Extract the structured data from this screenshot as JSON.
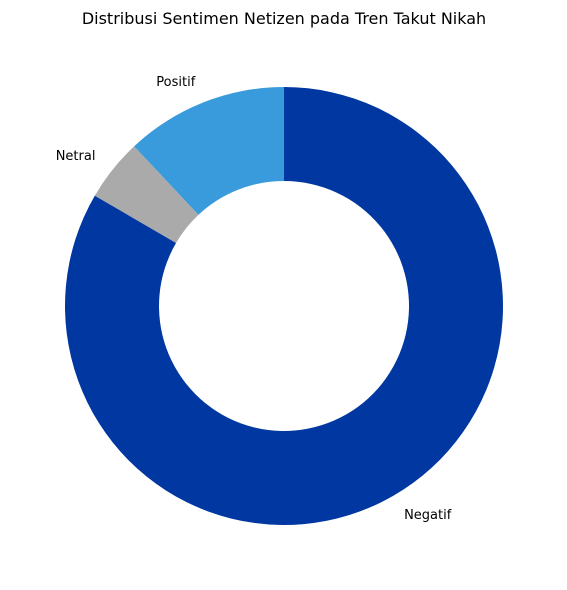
{
  "chart_data": {
    "type": "pie",
    "variant": "donut",
    "title": "Distribusi Sentimen Netizen pada Tren Takut Nikah",
    "slices": [
      {
        "label": "Positif",
        "value": 12,
        "color": "#3a9bdc"
      },
      {
        "label": "Netral",
        "value": 4.6,
        "color": "#aaaaaa"
      },
      {
        "label": "Negatif",
        "value": 83.4,
        "color": "#0037a0"
      }
    ],
    "start_angle_deg": 90,
    "direction": "counterclockwise",
    "legend": "none"
  }
}
